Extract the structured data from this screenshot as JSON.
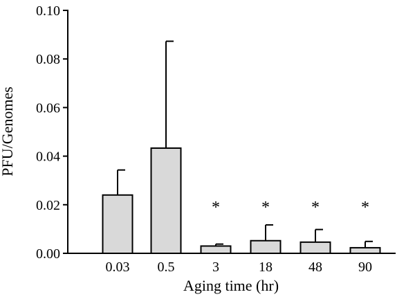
{
  "chart_data": {
    "type": "bar",
    "xlabel": "Aging time (hr)",
    "ylabel": "PFU/Genomes",
    "categories": [
      "0.03",
      "0.5",
      "3",
      "18",
      "48",
      "90"
    ],
    "values": [
      0.024,
      0.0433,
      0.003,
      0.0052,
      0.0046,
      0.0023
    ],
    "error_upper": [
      0.0343,
      0.0873,
      0.0038,
      0.0117,
      0.0098,
      0.0049
    ],
    "annotations": [
      "",
      "",
      "*",
      "*",
      "*",
      "*"
    ],
    "ylim": [
      0,
      0.1
    ],
    "yticks": [
      "0.00",
      "0.02",
      "0.04",
      "0.06",
      "0.08",
      "0.10"
    ],
    "bar_color": "#d9d9d9",
    "edge_color": "#000000",
    "grid": false
  }
}
